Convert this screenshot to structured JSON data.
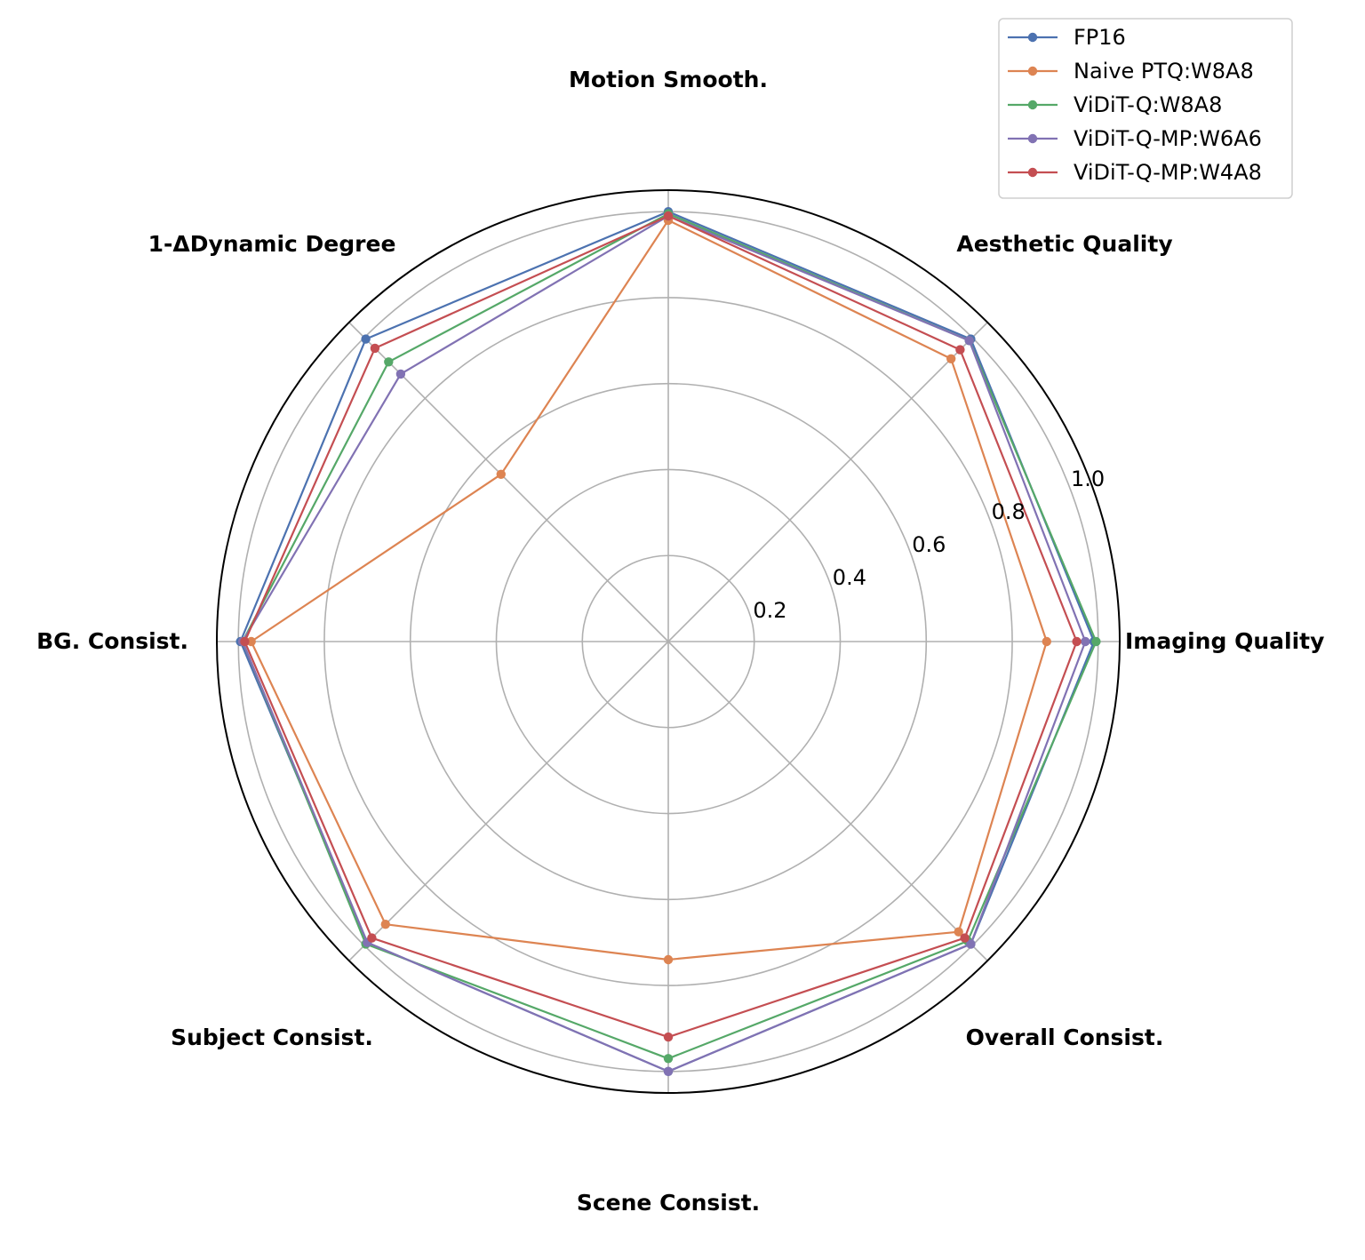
{
  "chart_data": {
    "type": "radar",
    "axes": [
      "Imaging Quality",
      "Aesthetic Quality",
      "Motion Smooth.",
      "1-ΔDynamic Degree",
      "BG. Consist.",
      "Subject Consist.",
      "Scene Consist.",
      "Overall Consist."
    ],
    "rlim": [
      0,
      1.05
    ],
    "rticks": [
      0.2,
      0.4,
      0.6,
      0.8,
      1.0
    ],
    "rtick_labels": [
      "0.2",
      "0.4",
      "0.6",
      "0.8",
      "1.0"
    ],
    "grid": true,
    "legend_position": "top-right",
    "series": [
      {
        "name": "FP16",
        "color": "#4c72b0",
        "values": [
          0.99,
          0.995,
          1.0,
          0.995,
          0.995,
          0.99,
          1.0,
          0.995
        ]
      },
      {
        "name": "Naive PTQ:W8A8",
        "color": "#dd8452",
        "values": [
          0.88,
          0.93,
          0.98,
          0.55,
          0.97,
          0.93,
          0.74,
          0.955
        ]
      },
      {
        "name": "ViDiT-Q:W8A8",
        "color": "#55a868",
        "values": [
          0.995,
          0.99,
          0.995,
          0.92,
          0.99,
          0.995,
          0.97,
          0.985
        ]
      },
      {
        "name": "ViDiT-Q-MP:W6A6",
        "color": "#8172b3",
        "values": [
          0.97,
          0.99,
          0.99,
          0.88,
          0.99,
          0.99,
          1.0,
          0.995
        ]
      },
      {
        "name": "ViDiT-Q-MP:W4A8",
        "color": "#c44e52",
        "values": [
          0.95,
          0.96,
          0.99,
          0.965,
          0.985,
          0.975,
          0.92,
          0.975
        ]
      }
    ]
  }
}
